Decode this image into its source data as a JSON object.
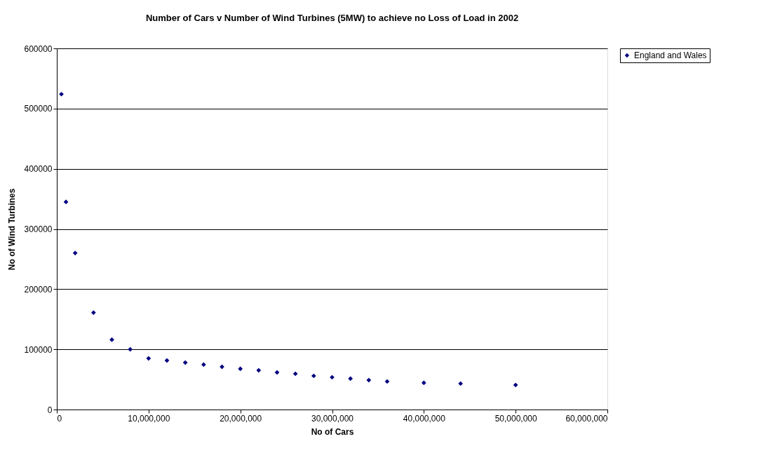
{
  "chart_data": {
    "type": "scatter",
    "title": "Number of Cars v Number of Wind Turbines (5MW) to achieve no Loss of Load in 2002",
    "xlabel": "No of Cars",
    "ylabel": "No of Wind Turbines",
    "x": [
      500000,
      1000000,
      2000000,
      4000000,
      6000000,
      8000000,
      10000000,
      12000000,
      14000000,
      16000000,
      18000000,
      20000000,
      22000000,
      24000000,
      26000000,
      28000000,
      30000000,
      32000000,
      34000000,
      36000000,
      40000000,
      44000000,
      50000000
    ],
    "series": [
      {
        "name": "England and Wales",
        "color": "#000080",
        "values": [
          524000,
          345000,
          260000,
          161000,
          116000,
          100000,
          85000,
          81500,
          78000,
          74600,
          71000,
          67600,
          65200,
          61700,
          59400,
          55900,
          53600,
          51300,
          48900,
          46600,
          44300,
          43100,
          40800
        ]
      }
    ],
    "xlim": [
      0,
      60000000
    ],
    "xticks": [
      0,
      {
        "value": 10000000,
        "label": "10,000,000"
      },
      {
        "value": 20000000,
        "label": "20,000,000"
      },
      {
        "value": 30000000,
        "label": "30,000,000"
      },
      {
        "value": 40000000,
        "label": "40,000,000"
      },
      {
        "value": 50000000,
        "label": "50,000,000"
      },
      {
        "value": 60000000,
        "label": "60,000,000"
      }
    ],
    "ylim": [
      0,
      600000
    ],
    "yticks": [
      0,
      100000,
      200000,
      300000,
      400000,
      500000,
      600000
    ],
    "grid": "y",
    "legend": "right",
    "marker": "diamond"
  }
}
